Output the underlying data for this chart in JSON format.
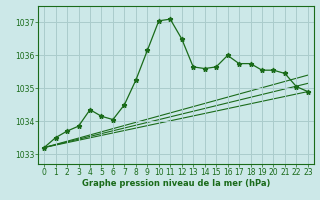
{
  "title": "Graphe pression niveau de la mer (hPa)",
  "bg_color": "#cce8e8",
  "grid_color": "#aacccc",
  "line_color": "#1a6b1a",
  "xlim": [
    -0.5,
    23.5
  ],
  "ylim": [
    1032.7,
    1037.5
  ],
  "yticks": [
    1033,
    1034,
    1035,
    1036,
    1037
  ],
  "xticks": [
    0,
    1,
    2,
    3,
    4,
    5,
    6,
    7,
    8,
    9,
    10,
    11,
    12,
    13,
    14,
    15,
    16,
    17,
    18,
    19,
    20,
    21,
    22,
    23
  ],
  "series1_x": [
    0,
    1,
    2,
    3,
    4,
    5,
    6,
    7,
    8,
    9,
    10,
    11,
    12,
    13,
    14,
    15,
    16,
    17,
    18,
    19,
    20,
    21,
    22,
    23
  ],
  "series1_y": [
    1033.2,
    1033.5,
    1033.7,
    1033.85,
    1034.35,
    1034.15,
    1034.05,
    1034.5,
    1035.25,
    1036.15,
    1037.05,
    1037.1,
    1036.5,
    1035.65,
    1035.6,
    1035.65,
    1036.0,
    1035.75,
    1035.75,
    1035.55,
    1035.55,
    1035.45,
    1035.05,
    1034.9
  ],
  "series2_x": [
    0,
    23
  ],
  "series2_y": [
    1033.2,
    1034.9
  ],
  "series3_x": [
    0,
    23
  ],
  "series3_y": [
    1033.2,
    1035.15
  ],
  "series4_x": [
    0,
    23
  ],
  "series4_y": [
    1033.2,
    1035.4
  ],
  "title_fontsize": 6.0,
  "tick_fontsize": 5.5
}
